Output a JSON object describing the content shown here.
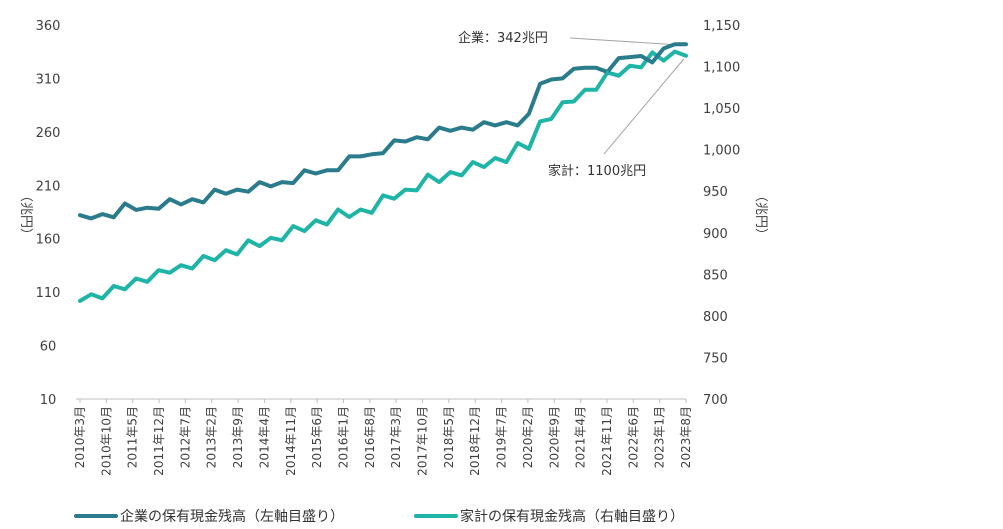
{
  "chart_data": {
    "type": "line",
    "colors": {
      "corporate": "#2a7c8c",
      "household": "#1fb5a6",
      "annotation_line": "#a6a6a6",
      "axis": "#bfbfbf"
    },
    "left_axis": {
      "label": "（兆円）",
      "ylim": [
        10,
        360
      ],
      "ticks": [
        "10",
        "60",
        "110",
        "160",
        "210",
        "260",
        "310",
        "360"
      ]
    },
    "right_axis": {
      "label": "（兆円）",
      "ylim": [
        700,
        1150
      ],
      "ticks": [
        "700",
        "750",
        "800",
        "850",
        "900",
        "950",
        "1,000",
        "1,050",
        "1,100",
        "1,150"
      ]
    },
    "x_tick_labels": [
      "2010年3月",
      "2010年10月",
      "2011年5月",
      "2011年12月",
      "2012年7月",
      "2013年2月",
      "2013年9月",
      "2014年4月",
      "2014年11月",
      "2015年6月",
      "2016年1月",
      "2016年8月",
      "2017年3月",
      "2017年10月",
      "2018年5月",
      "2018年12月",
      "2019年7月",
      "2020年2月",
      "2020年9月",
      "2021年4月",
      "2021年11月",
      "2022年6月",
      "2023年1月",
      "2023年8月"
    ],
    "x_start": "2010年3月",
    "x_end": "2023年8月",
    "series": [
      {
        "name": "企業の保有現金残高（左軸目盛り）",
        "axis": "left",
        "values": [
          182,
          179,
          183,
          180,
          193,
          187,
          189,
          188,
          197,
          192,
          197,
          194,
          206,
          202,
          206,
          204,
          213,
          209,
          213,
          212,
          224,
          221,
          224,
          224,
          237,
          237,
          239,
          240,
          252,
          251,
          255,
          253,
          264,
          261,
          264,
          262,
          269,
          266,
          269,
          266,
          277,
          305,
          309,
          310,
          319,
          320,
          320,
          316,
          329,
          330,
          331,
          325,
          338,
          342,
          342
        ]
      },
      {
        "name": "家計の保有現金残高（右軸目盛り）",
        "axis": "right",
        "values": [
          818,
          826,
          821,
          836,
          832,
          845,
          841,
          855,
          852,
          861,
          857,
          872,
          867,
          879,
          874,
          891,
          884,
          894,
          891,
          908,
          902,
          915,
          910,
          928,
          919,
          928,
          924,
          945,
          941,
          952,
          951,
          970,
          961,
          973,
          969,
          985,
          979,
          990,
          985,
          1008,
          1001,
          1034,
          1037,
          1057,
          1058,
          1072,
          1072,
          1093,
          1089,
          1101,
          1099,
          1117,
          1107,
          1118,
          1113
        ]
      }
    ],
    "annotations": [
      {
        "text": "企業：342兆円",
        "series": 0
      },
      {
        "text": "家計：1100兆円",
        "series": 1
      }
    ]
  }
}
